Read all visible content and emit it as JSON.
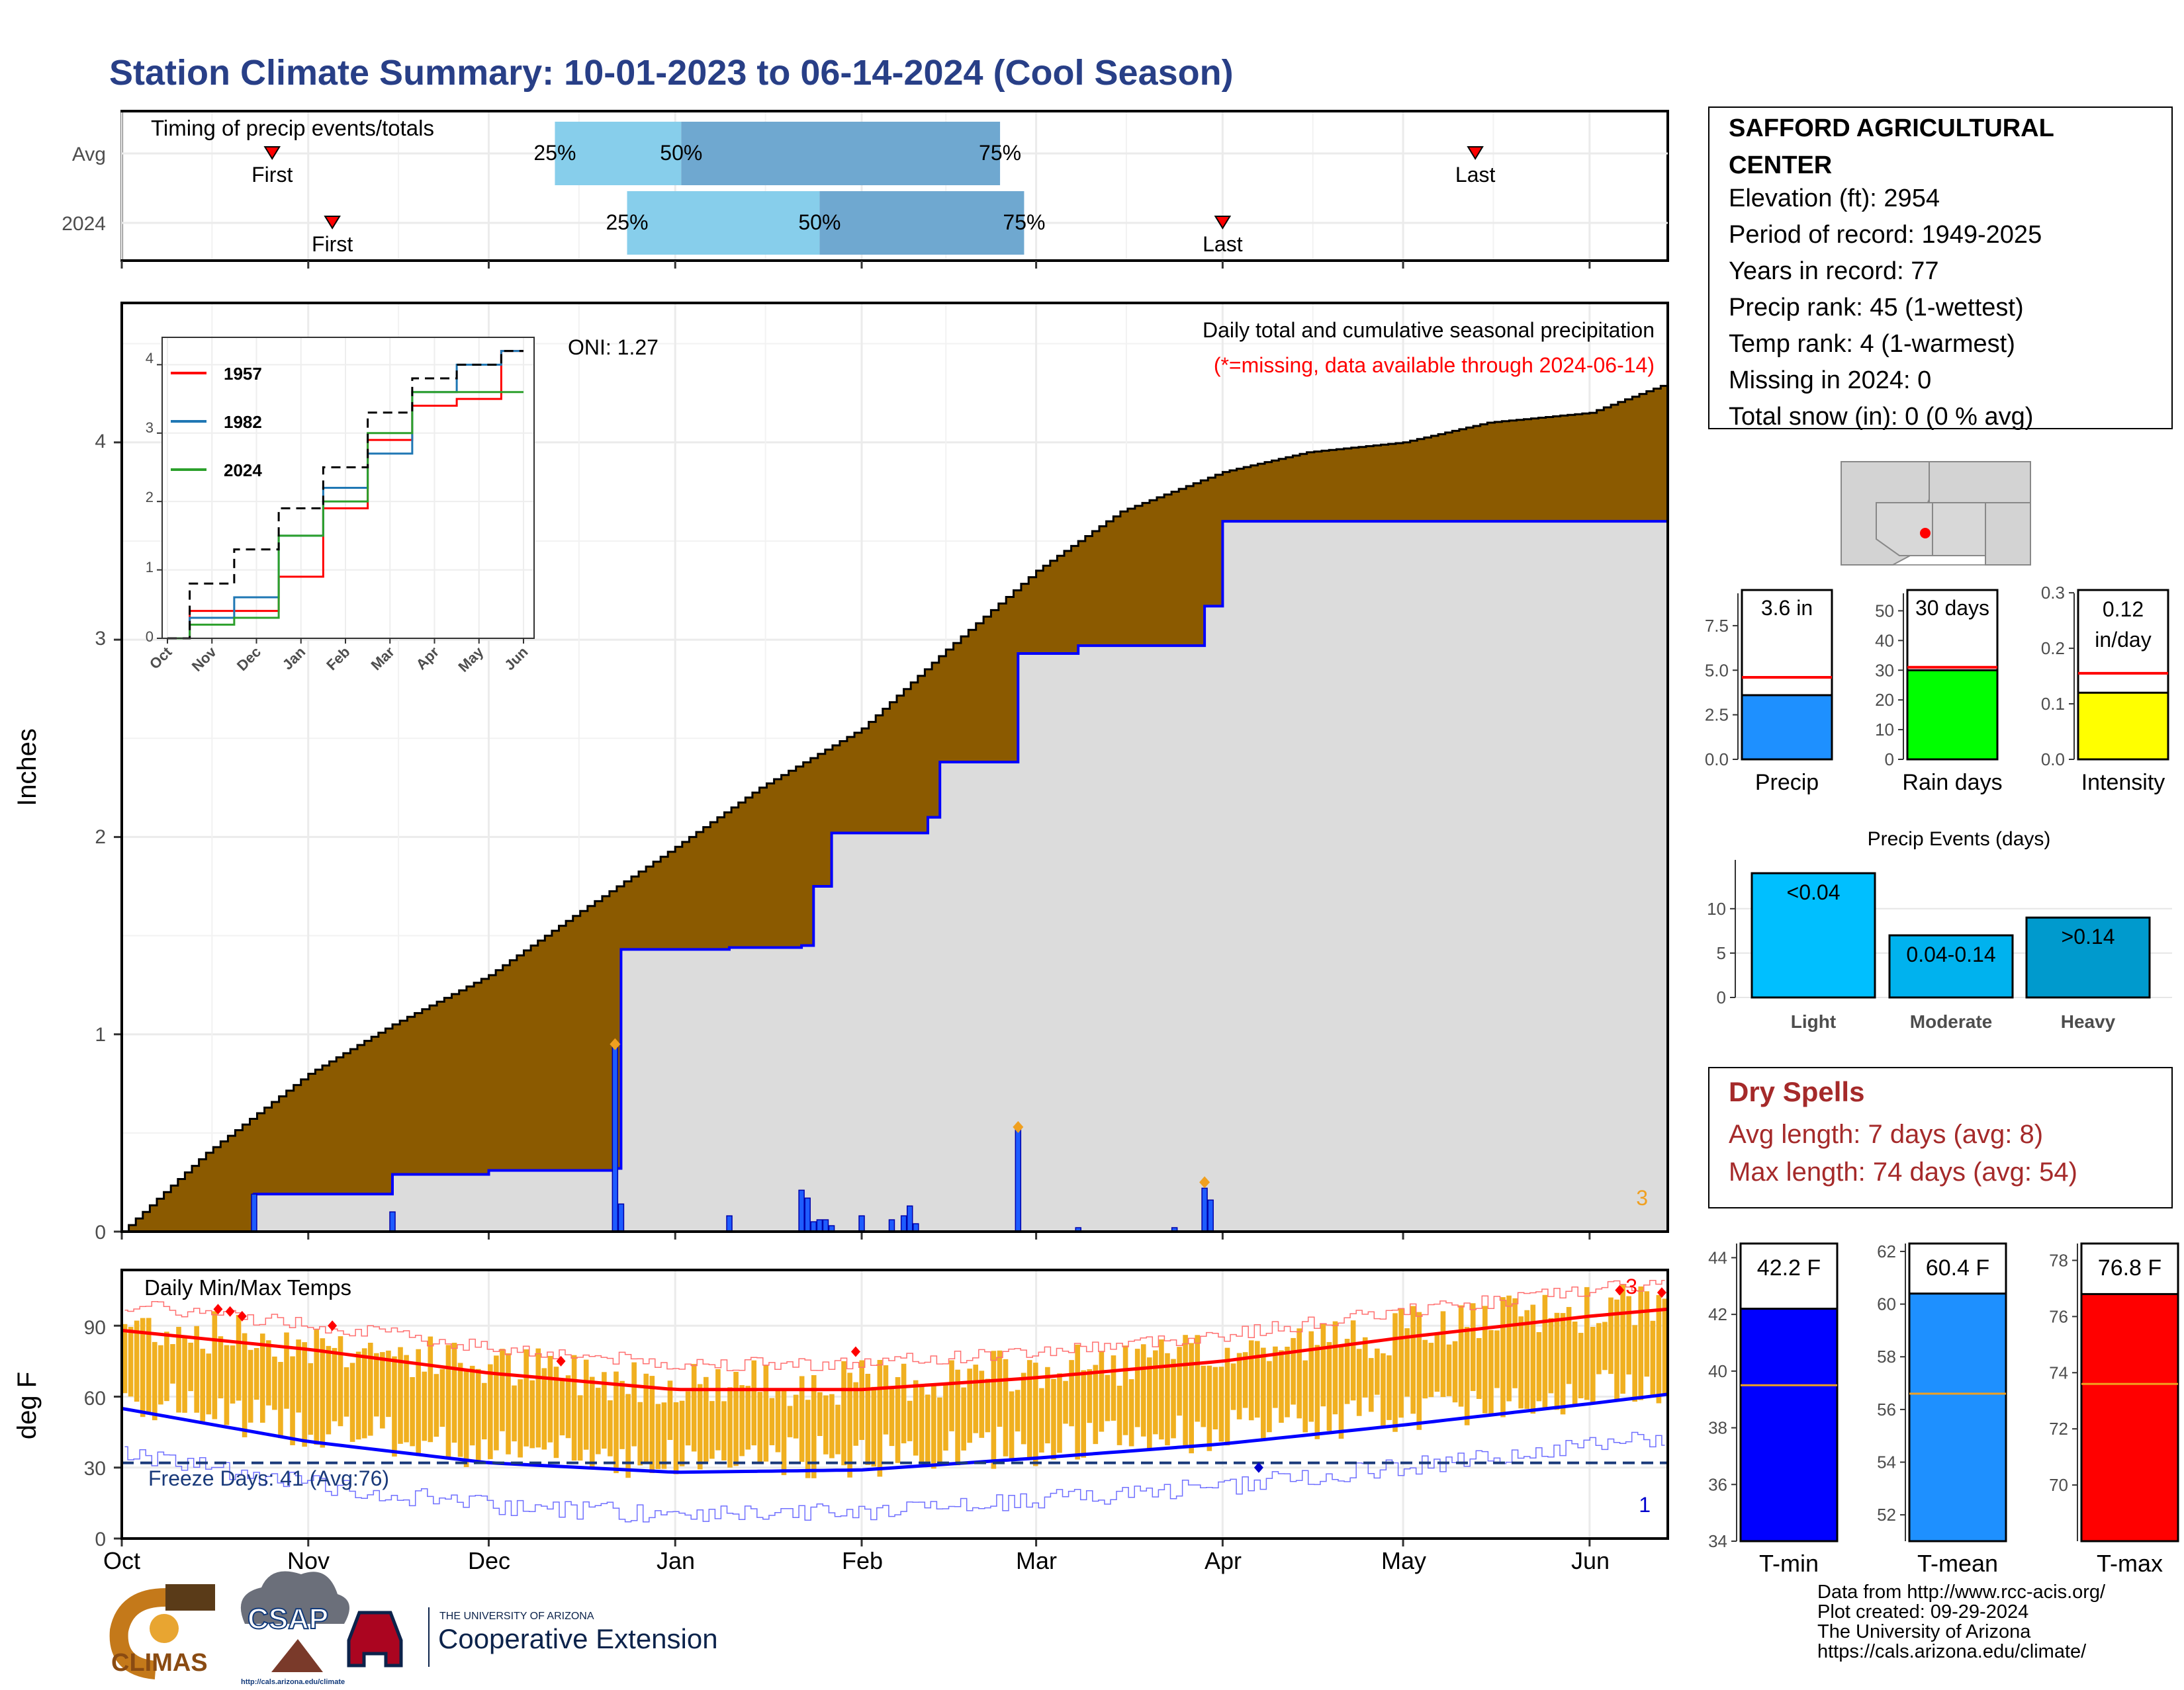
{
  "title": "Station Climate Summary: 10-01-2023 to 06-14-2024 (Cool Season)",
  "colors": {
    "title": "#283f87",
    "cum_avg": "#8b5a00",
    "cum_obs": "#dcdcdc",
    "obs_line": "#0000ff",
    "tmin": "#0000ff",
    "tmean": "#1e90ff",
    "tmax": "#ff0000",
    "temp_range": "#f0b020",
    "dry": "#a52a2a"
  },
  "timing": {
    "title": "Timing of precip events/totals",
    "rows": [
      {
        "label": "Avg",
        "first": "2023-10-26",
        "q25": "2023-12-12",
        "q50": "2024-01-02",
        "q75": "2024-02-24",
        "last": "2024-05-13"
      },
      {
        "label": "2024",
        "first": "2023-11-05",
        "q25": "2023-12-24",
        "q50": "2024-01-25",
        "q75": "2024-02-28",
        "last": "2024-04-01"
      }
    ],
    "marker_labels": {
      "first": "First",
      "last": "Last",
      "q25": "25%",
      "q50": "50%",
      "q75": "75%"
    }
  },
  "precip": {
    "ylabel": "Inches",
    "ytick_labels": [
      "0",
      "1",
      "2",
      "3",
      "4"
    ],
    "header": "Daily total and cumulative seasonal precipitation",
    "missing_note": "(*=missing, data available through 2024-06-14)",
    "oni": "ONI: 1.27",
    "missing_count": "3"
  },
  "inset": {
    "legend": [
      "1957",
      "1982",
      "2024"
    ],
    "ytick_labels": [
      "0",
      "1",
      "2",
      "3",
      "4"
    ],
    "xtick_labels": [
      "Oct",
      "Nov",
      "Dec",
      "Jan",
      "Feb",
      "Mar",
      "Apr",
      "May",
      "Jun"
    ]
  },
  "temps": {
    "title": "Daily Min/Max Temps",
    "ylabel": "deg F",
    "ytick_labels": [
      "0",
      "30",
      "60",
      "90"
    ],
    "freeze_note": "Freeze Days: 41 (Avg:76)",
    "record_low_count": "1",
    "record_high_count": "3"
  },
  "xaxis_months": [
    "Oct",
    "Nov",
    "Dec",
    "Jan",
    "Feb",
    "Mar",
    "Apr",
    "May",
    "Jun"
  ],
  "station": {
    "name": "SAFFORD AGRICULTURAL CENTER",
    "lines": [
      "Elevation (ft): 2954",
      "Period of record: 1949-2025",
      "Years in record: 77",
      "Precip rank: 45 (1-wettest)",
      "Temp rank: 4 (1-warmest)",
      "Missing in 2024: 0",
      "Total snow (in): 0 (0 % avg)"
    ]
  },
  "summary_bars": [
    {
      "label": "Precip",
      "value_label": "3.6 in",
      "ticks": [
        "0.0",
        "2.5",
        "5.0",
        "7.5"
      ]
    },
    {
      "label": "Rain days",
      "value_label": "30 days",
      "ticks": [
        "0",
        "10",
        "20",
        "30",
        "40",
        "50"
      ]
    },
    {
      "label": "Intensity",
      "value_label_1": "0.12",
      "value_label_2": "in/day",
      "ticks": [
        "0.0",
        "0.1",
        "0.2",
        "0.3"
      ]
    }
  ],
  "events": {
    "title": "Precip Events (days)",
    "ticks": [
      "0",
      "5",
      "10"
    ],
    "bars": [
      {
        "cat": "Light",
        "label": "<0.04"
      },
      {
        "cat": "Moderate",
        "label": "0.04-0.14"
      },
      {
        "cat": "Heavy",
        "label": ">0.14"
      }
    ]
  },
  "dry": {
    "title": "Dry Spells",
    "avg": "Avg length: 7 days (avg: 8)",
    "max": "Max length: 74 days (avg: 54)"
  },
  "temp_bars": [
    {
      "label": "T-min",
      "value_label": "42.2 F",
      "ticks": [
        "34",
        "36",
        "38",
        "40",
        "42",
        "44"
      ]
    },
    {
      "label": "T-mean",
      "value_label": "60.4 F",
      "ticks": [
        "52",
        "54",
        "56",
        "58",
        "60",
        "62"
      ]
    },
    {
      "label": "T-max",
      "value_label": "76.8 F",
      "ticks": [
        "70",
        "72",
        "74",
        "76",
        "78"
      ]
    }
  ],
  "footer": [
    "Data from http://www.rcc-acis.org/",
    "Plot created: 09-29-2024",
    "The University of Arizona",
    "https://cals.arizona.edu/climate/"
  ],
  "logos": {
    "climas": "CLIMAS",
    "csap": "CSAP",
    "csap_url": "http://cals.arizona.edu/climate",
    "ua_small": "THE UNIVERSITY OF ARIZONA",
    "ua_big": "Cooperative Extension"
  },
  "chart_data": [
    {
      "type": "area",
      "title": "Daily total and cumulative seasonal precipitation",
      "ylabel": "Inches",
      "ylim": [
        0,
        4.7
      ],
      "xlim": [
        "2023-10-01",
        "2024-06-14"
      ],
      "series": [
        {
          "name": "",
          "kind": "cumulative_average",
          "x": [
            "2023-10-01",
            "2023-10-15",
            "2023-11-01",
            "2023-11-15",
            "2023-12-01",
            "2023-12-15",
            "2024-01-01",
            "2024-01-15",
            "2024-02-01",
            "2024-02-15",
            "2024-03-01",
            "2024-03-15",
            "2024-04-01",
            "2024-04-15",
            "2024-05-01",
            "2024-05-15",
            "2024-06-01",
            "2024-06-14"
          ],
          "y": [
            0,
            0.4,
            0.8,
            1.05,
            1.3,
            1.6,
            1.95,
            2.25,
            2.55,
            2.95,
            3.35,
            3.65,
            3.85,
            3.95,
            4.0,
            4.1,
            4.15,
            4.3
          ]
        },
        {
          "name": "",
          "kind": "cumulative_observed",
          "x": [
            "2023-10-01",
            "2023-10-23",
            "2023-11-15",
            "2023-12-01",
            "2023-12-22",
            "2023-12-23",
            "2024-01-10",
            "2024-01-22",
            "2024-01-24",
            "2024-01-27",
            "2024-02-04",
            "2024-02-12",
            "2024-02-14",
            "2024-02-27",
            "2024-03-08",
            "2024-03-24",
            "2024-03-29",
            "2024-04-01",
            "2024-06-14"
          ],
          "y": [
            0,
            0.19,
            0.29,
            0.31,
            0.32,
            1.43,
            1.44,
            1.45,
            1.75,
            2.02,
            2.02,
            2.1,
            2.38,
            2.93,
            2.97,
            2.97,
            3.17,
            3.6,
            3.6
          ]
        },
        {
          "name": "",
          "kind": "daily",
          "x": [
            "2023-10-23",
            "2023-11-15",
            "2023-12-22",
            "2023-12-23",
            "2024-01-10",
            "2024-01-22",
            "2024-01-23",
            "2024-01-24",
            "2024-01-25",
            "2024-01-26",
            "2024-01-27",
            "2024-02-01",
            "2024-02-06",
            "2024-02-08",
            "2024-02-09",
            "2024-02-10",
            "2024-02-27",
            "2024-03-08",
            "2024-03-24",
            "2024-03-29",
            "2024-03-30"
          ],
          "y": [
            0.19,
            0.1,
            0.95,
            0.14,
            0.08,
            0.21,
            0.17,
            0.05,
            0.06,
            0.06,
            0.03,
            0.08,
            0.06,
            0.08,
            0.13,
            0.04,
            0.53,
            0.02,
            0.02,
            0.22,
            0.16
          ]
        }
      ]
    },
    {
      "type": "line",
      "title": "",
      "ylim": [
        0,
        4.4
      ],
      "series": [
        {
          "name": "1957",
          "x": [
            "Oct",
            "Nov",
            "Dec",
            "Jan",
            "Feb",
            "Mar",
            "Apr",
            "May",
            "Jun"
          ],
          "y": [
            0,
            0.4,
            0.4,
            0.9,
            1.9,
            2.9,
            3.4,
            3.5,
            4.2
          ]
        },
        {
          "name": "1982",
          "x": [
            "Oct",
            "Nov",
            "Dec",
            "Jan",
            "Feb",
            "Mar",
            "Apr",
            "May",
            "Jun"
          ],
          "y": [
            0,
            0.3,
            0.6,
            1.5,
            2.2,
            2.7,
            3.6,
            4.0,
            4.2
          ]
        },
        {
          "name": "2024",
          "x": [
            "Oct",
            "Nov",
            "Dec",
            "Jan",
            "Feb",
            "Mar",
            "Apr",
            "May",
            "Jun"
          ],
          "y": [
            0,
            0.2,
            0.3,
            1.5,
            2.0,
            3.0,
            3.6,
            3.6,
            3.6
          ]
        },
        {
          "name": "",
          "kind": "average",
          "x": [
            "Oct",
            "Nov",
            "Dec",
            "Jan",
            "Feb",
            "Mar",
            "Apr",
            "May",
            "Jun"
          ],
          "y": [
            0,
            0.8,
            1.3,
            1.9,
            2.5,
            3.3,
            3.8,
            4.0,
            4.2
          ]
        }
      ]
    },
    {
      "type": "line",
      "title": "Daily Min/Max Temps",
      "ylabel": "deg F",
      "ylim": [
        0,
        112
      ],
      "series": [
        {
          "name": "",
          "kind": "normal_max",
          "x": [
            "2023-10-01",
            "2023-11-01",
            "2023-12-01",
            "2024-01-01",
            "2024-02-01",
            "2024-03-01",
            "2024-04-01",
            "2024-05-01",
            "2024-06-01",
            "2024-06-14"
          ],
          "y": [
            88,
            80,
            70,
            63,
            63,
            68,
            75,
            85,
            94,
            97
          ]
        },
        {
          "name": "",
          "kind": "normal_min",
          "x": [
            "2023-10-01",
            "2023-11-01",
            "2023-12-01",
            "2024-01-01",
            "2024-02-01",
            "2024-03-01",
            "2024-04-01",
            "2024-05-01",
            "2024-06-01",
            "2024-06-14"
          ],
          "y": [
            55,
            41,
            32,
            28,
            29,
            34,
            40,
            48,
            57,
            61
          ]
        },
        {
          "name": "",
          "kind": "freeze_line",
          "y": 32
        }
      ]
    },
    {
      "type": "bar",
      "categories": [
        "Precip"
      ],
      "values": [
        3.6
      ],
      "normal": 4.6,
      "ylim": [
        0,
        9.5
      ]
    },
    {
      "type": "bar",
      "categories": [
        "Rain days"
      ],
      "values": [
        30
      ],
      "normal": 31,
      "ylim": [
        0,
        57
      ]
    },
    {
      "type": "bar",
      "categories": [
        "Intensity"
      ],
      "values": [
        0.12
      ],
      "normal": 0.155,
      "ylim": [
        0,
        0.305
      ]
    },
    {
      "type": "bar",
      "title": "Precip Events (days)",
      "categories": [
        "Light",
        "Moderate",
        "Heavy"
      ],
      "values": [
        14,
        7,
        9
      ],
      "ylim": [
        0,
        15.5
      ]
    },
    {
      "type": "bar",
      "categories": [
        "T-min"
      ],
      "values": [
        42.2
      ],
      "normal": 39.5,
      "ylim": [
        34,
        44.5
      ]
    },
    {
      "type": "bar",
      "categories": [
        "T-mean"
      ],
      "values": [
        60.4
      ],
      "normal": 56.6,
      "ylim": [
        51,
        62.3
      ]
    },
    {
      "type": "bar",
      "categories": [
        "T-max"
      ],
      "values": [
        76.8
      ],
      "normal": 73.6,
      "ylim": [
        68,
        78.6
      ]
    }
  ]
}
